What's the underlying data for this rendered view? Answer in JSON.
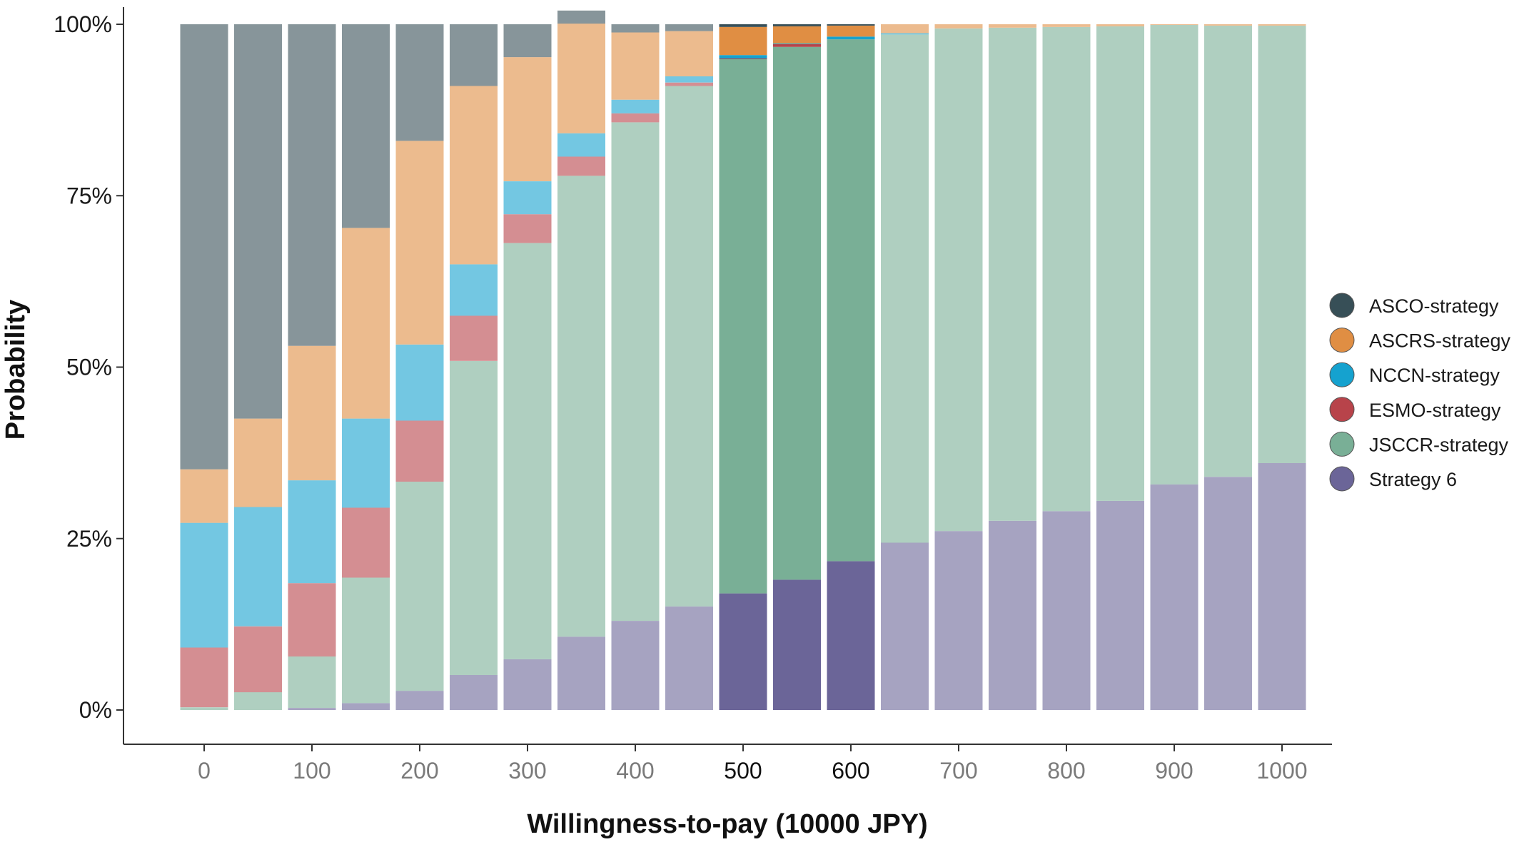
{
  "chart_data": {
    "type": "bar",
    "stacked": true,
    "normalized": true,
    "title": "",
    "xlabel": "Willingness-to-pay (10000 JPY)",
    "ylabel": "Probability",
    "ylim": [
      0,
      1
    ],
    "yticks": [
      {
        "value": 0,
        "label": "0%"
      },
      {
        "value": 0.25,
        "label": "25%"
      },
      {
        "value": 0.5,
        "label": "50%"
      },
      {
        "value": 0.75,
        "label": "75%"
      },
      {
        "value": 1,
        "label": "100%"
      }
    ],
    "x": [
      0,
      50,
      100,
      150,
      200,
      250,
      300,
      350,
      400,
      450,
      500,
      550,
      600,
      650,
      700,
      750,
      800,
      850,
      900,
      950,
      1000
    ],
    "xticks": [
      "0",
      "100",
      "200",
      "300",
      "400",
      "500",
      "600",
      "700",
      "800",
      "900",
      "1000"
    ],
    "xtick_values": [
      0,
      100,
      200,
      300,
      400,
      500,
      600,
      700,
      800,
      900,
      1000
    ],
    "xtick_highlight": [
      "500",
      "600"
    ],
    "highlight_x": [
      500,
      550,
      600
    ],
    "grid": false,
    "legend_position": "right",
    "series": [
      {
        "name": "Strategy 6",
        "color": "#6b6598",
        "values": [
          0,
          0,
          0.003,
          0.01,
          0.028,
          0.051,
          0.074,
          0.107,
          0.13,
          0.151,
          0.17,
          0.19,
          0.217,
          0.244,
          0.261,
          0.276,
          0.29,
          0.305,
          0.329,
          0.34,
          0.36
        ]
      },
      {
        "name": "JSCCR-strategy",
        "color": "#79af96",
        "values": [
          0.004,
          0.026,
          0.075,
          0.183,
          0.305,
          0.458,
          0.607,
          0.672,
          0.727,
          0.759,
          0.779,
          0.777,
          0.761,
          0.741,
          0.733,
          0.719,
          0.706,
          0.692,
          0.67,
          0.658,
          0.638
        ]
      },
      {
        "name": "ESMO-strategy",
        "color": "#b8434a",
        "values": [
          0.087,
          0.096,
          0.107,
          0.102,
          0.089,
          0.066,
          0.042,
          0.028,
          0.013,
          0.005,
          0.001,
          0.004,
          0,
          0,
          0,
          0,
          0,
          0,
          0,
          0,
          0
        ]
      },
      {
        "name": "NCCN-strategy",
        "color": "#15a2cf",
        "values": [
          0.182,
          0.174,
          0.15,
          0.13,
          0.111,
          0.075,
          0.048,
          0.034,
          0.02,
          0.009,
          0.005,
          0.001,
          0.004,
          0.002,
          0,
          0,
          0,
          0,
          0,
          0,
          0
        ]
      },
      {
        "name": "ASCRS-strategy",
        "color": "#e08e43",
        "values": [
          0.078,
          0.129,
          0.196,
          0.278,
          0.297,
          0.26,
          0.181,
          0.16,
          0.098,
          0.066,
          0.041,
          0.025,
          0.016,
          0.013,
          0.006,
          0.005,
          0.004,
          0.003,
          0.001,
          0.002,
          0.002
        ]
      },
      {
        "name": "ASCO-strategy",
        "color": "#374f57",
        "values": [
          0.649,
          0.575,
          0.469,
          0.297,
          0.17,
          0.09,
          0.048,
          0.019,
          0.012,
          0.01,
          0.004,
          0.003,
          0.002,
          0,
          0,
          0,
          0,
          0,
          0,
          0,
          0
        ]
      }
    ],
    "legend_entries": [
      {
        "label": "ASCO-strategy",
        "color": "#374f57"
      },
      {
        "label": "ASCRS-strategy",
        "color": "#e08e43"
      },
      {
        "label": "NCCN-strategy",
        "color": "#15a2cf"
      },
      {
        "label": "ESMO-strategy",
        "color": "#b8434a"
      },
      {
        "label": "JSCCR-strategy",
        "color": "#79af96"
      },
      {
        "label": "Strategy 6",
        "color": "#6b6598"
      }
    ]
  }
}
